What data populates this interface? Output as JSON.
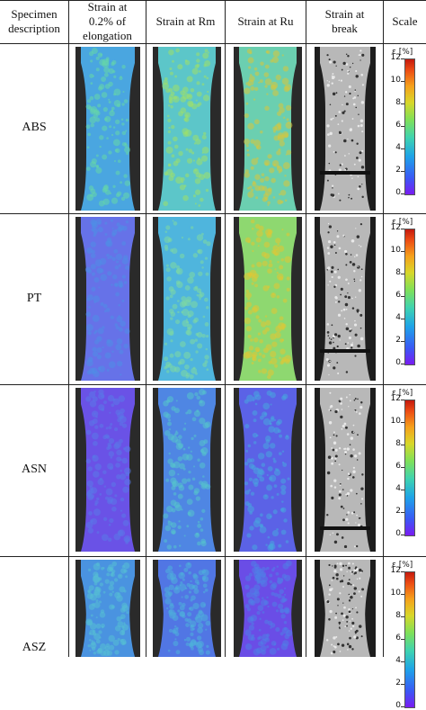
{
  "headers": [
    "Specimen\ndescription",
    "Strain at\n0.2% of\nelongation",
    "Strain at Rm",
    "Strain at Ru",
    "Strain at\nbreak",
    "Scale"
  ],
  "rows": [
    {
      "label": "ABS"
    },
    {
      "label": "PT"
    },
    {
      "label": "ASN"
    },
    {
      "label": "ASZ"
    }
  ],
  "scale": {
    "title": "ε [%]",
    "ticks": [
      "0",
      "2",
      "4",
      "6",
      "8",
      "10",
      "12"
    ]
  },
  "colors": {
    "low": "#7a1cf2",
    "blue": "#3b58f5",
    "cyan": "#1ea3e8",
    "green": "#7ee05a",
    "yellow": "#d8d72a",
    "high": "#c41a0e",
    "break_grey": "#b8b8b8"
  }
}
